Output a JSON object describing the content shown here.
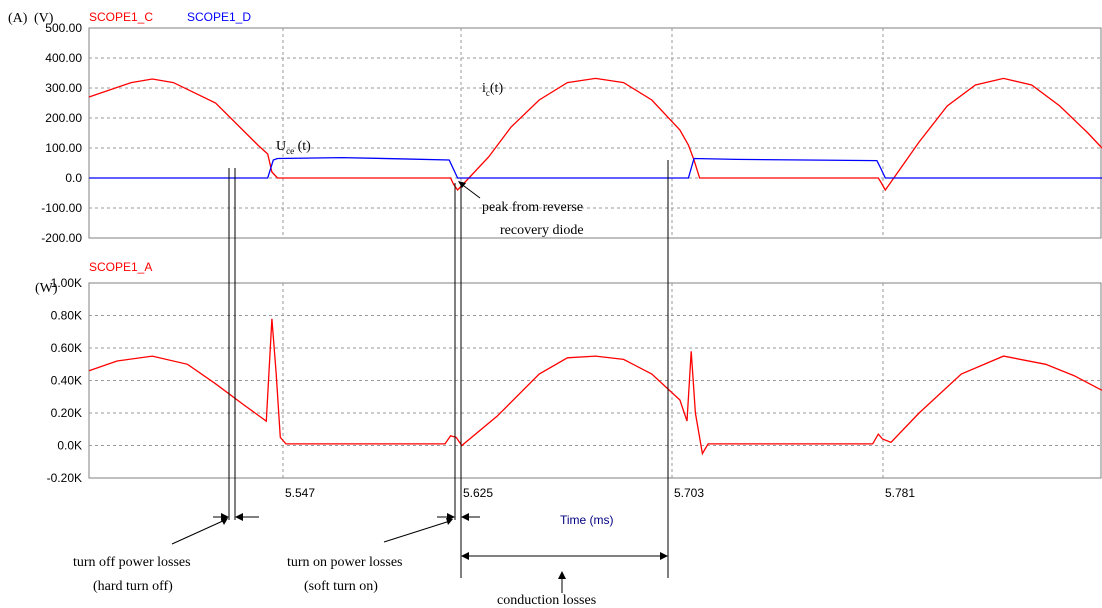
{
  "colors": {
    "red": "#ff0000",
    "blue": "#0000ff",
    "grid": "#9a9a9a",
    "black": "#000000",
    "navy": "#000080"
  },
  "top_panel": {
    "units": [
      "(A)",
      "(V)"
    ],
    "legend": [
      "SCOPE1_C",
      "SCOPE1_D"
    ],
    "ylim": [
      -200,
      500
    ],
    "yticks": [
      "500.00",
      "400.00",
      "300.00",
      "200.00",
      "100.00",
      "0.0",
      "-100.00",
      "-200.00"
    ]
  },
  "bottom_panel": {
    "units": "(W)",
    "legend": "SCOPE1_A",
    "ylim": [
      -0.2,
      1.0
    ],
    "yticks": [
      "1.00K",
      "0.80K",
      "0.60K",
      "0.40K",
      "0.20K",
      "0.0K",
      "-0.20K"
    ]
  },
  "x_axis": {
    "xlim": [
      5.49,
      5.85
    ],
    "ticks": [
      "5.547",
      "5.625",
      "5.703",
      "5.781"
    ],
    "label": "Time (ms)"
  },
  "annotations": {
    "ic_main": "i",
    "ic_sub": "c",
    "ic_tail": "(t)",
    "uce_main": "U",
    "uce_sub": "ce",
    "uce_tail": " (t)",
    "peak_line1": "peak from reverse",
    "peak_line2": "recovery diode",
    "turnoff_line1": "turn off power losses",
    "turnoff_line2": "(hard turn off)",
    "turnon_line1": "turn on power losses",
    "turnon_line2": "(soft turn on)",
    "conduction": "conduction losses"
  },
  "chart_data": [
    {
      "type": "line",
      "x_unit": "ms",
      "y_units": [
        "A",
        "V"
      ],
      "xlim": [
        5.49,
        5.85
      ],
      "ylim": [
        -200,
        500
      ],
      "grid": true,
      "series": [
        {
          "name": "SCOPE1_C",
          "color": "#ff0000",
          "points": [
            [
              5.49,
              270
            ],
            [
              5.505,
              318
            ],
            [
              5.5125,
              330
            ],
            [
              5.52,
              318
            ],
            [
              5.535,
              250
            ],
            [
              5.55,
              110
            ],
            [
              5.5535,
              80
            ],
            [
              5.555,
              20
            ],
            [
              5.557,
              0
            ],
            [
              5.6185,
              0
            ],
            [
              5.6195,
              -20
            ],
            [
              5.621,
              -40
            ],
            [
              5.6225,
              -25
            ],
            [
              5.625,
              0
            ],
            [
              5.632,
              70
            ],
            [
              5.64,
              170
            ],
            [
              5.65,
              260
            ],
            [
              5.66,
              318
            ],
            [
              5.67,
              332
            ],
            [
              5.68,
              318
            ],
            [
              5.69,
              260
            ],
            [
              5.7,
              160
            ],
            [
              5.703,
              110
            ],
            [
              5.705,
              60
            ],
            [
              5.707,
              0
            ],
            [
              5.7705,
              0
            ],
            [
              5.7715,
              -15
            ],
            [
              5.773,
              -40
            ],
            [
              5.7745,
              -20
            ],
            [
              5.776,
              0
            ],
            [
              5.785,
              120
            ],
            [
              5.795,
              240
            ],
            [
              5.805,
              310
            ],
            [
              5.815,
              332
            ],
            [
              5.825,
              310
            ],
            [
              5.835,
              240
            ],
            [
              5.845,
              150
            ],
            [
              5.85,
              100
            ]
          ]
        },
        {
          "name": "SCOPE1_D",
          "color": "#0000ff",
          "points": [
            [
              5.49,
              0
            ],
            [
              5.5535,
              0
            ],
            [
              5.5555,
              60
            ],
            [
              5.557,
              65
            ],
            [
              5.58,
              68
            ],
            [
              5.6,
              64
            ],
            [
              5.618,
              60
            ],
            [
              5.6195,
              30
            ],
            [
              5.621,
              0
            ],
            [
              5.703,
              0
            ],
            [
              5.705,
              65
            ],
            [
              5.72,
              62
            ],
            [
              5.77,
              58
            ],
            [
              5.7715,
              30
            ],
            [
              5.773,
              0
            ],
            [
              5.85,
              0
            ]
          ]
        }
      ]
    },
    {
      "type": "line",
      "x_unit": "ms",
      "y_unit": "W",
      "xlim": [
        5.49,
        5.85
      ],
      "ylim": [
        -0.2,
        1.0
      ],
      "grid": true,
      "series": [
        {
          "name": "SCOPE1_A",
          "color": "#ff0000",
          "points": [
            [
              5.49,
              0.46
            ],
            [
              5.5,
              0.52
            ],
            [
              5.5125,
              0.55
            ],
            [
              5.525,
              0.5
            ],
            [
              5.535,
              0.38
            ],
            [
              5.545,
              0.25
            ],
            [
              5.553,
              0.15
            ],
            [
              5.555,
              0.78
            ],
            [
              5.5565,
              0.45
            ],
            [
              5.558,
              0.05
            ],
            [
              5.56,
              0.01
            ],
            [
              5.6165,
              0.01
            ],
            [
              5.6185,
              0.06
            ],
            [
              5.6205,
              0.05
            ],
            [
              5.6225,
              0.0
            ],
            [
              5.635,
              0.18
            ],
            [
              5.65,
              0.44
            ],
            [
              5.66,
              0.54
            ],
            [
              5.67,
              0.55
            ],
            [
              5.68,
              0.53
            ],
            [
              5.69,
              0.44
            ],
            [
              5.7,
              0.28
            ],
            [
              5.7025,
              0.15
            ],
            [
              5.704,
              0.58
            ],
            [
              5.7055,
              0.2
            ],
            [
              5.708,
              -0.05
            ],
            [
              5.71,
              0.01
            ],
            [
              5.7685,
              0.01
            ],
            [
              5.7705,
              0.07
            ],
            [
              5.772,
              0.04
            ],
            [
              5.775,
              0.02
            ],
            [
              5.785,
              0.2
            ],
            [
              5.8,
              0.44
            ],
            [
              5.815,
              0.55
            ],
            [
              5.83,
              0.5
            ],
            [
              5.84,
              0.43
            ],
            [
              5.85,
              0.34
            ]
          ]
        }
      ]
    }
  ]
}
